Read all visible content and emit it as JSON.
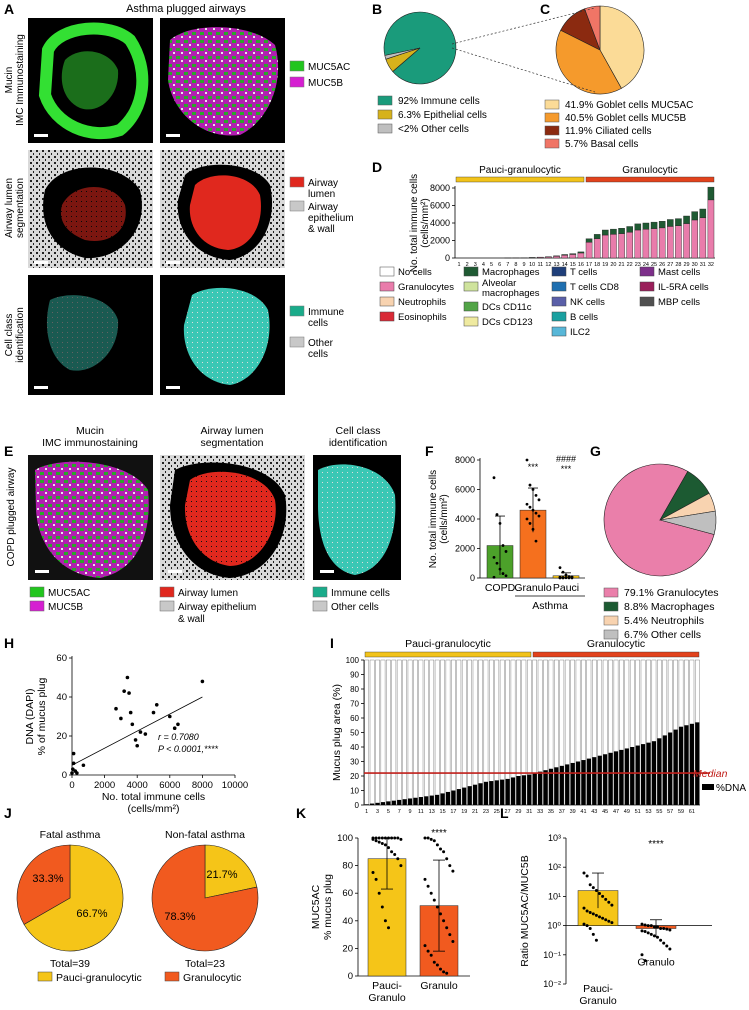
{
  "panel_labels": [
    "A",
    "B",
    "C",
    "D",
    "E",
    "F",
    "G",
    "H",
    "I",
    "J",
    "K",
    "L"
  ],
  "panelA": {
    "title": "Asthma plugged airways",
    "rows": [
      {
        "label": [
          "Mucin",
          "IMC Immunostaining"
        ],
        "legend": [
          {
            "text": "MUC5AC",
            "color": "#22c51e"
          },
          {
            "text": "MUC5B",
            "color": "#d51fd1"
          }
        ]
      },
      {
        "label": [
          "Airway lumen",
          "segmentation"
        ],
        "legend": [
          {
            "text": "Airway lumen",
            "color": "#e0281e"
          },
          {
            "text": "Airway epithelium & wall",
            "color": "#c8c8c8"
          }
        ]
      },
      {
        "label": [
          "Cell class",
          "identification"
        ],
        "legend": [
          {
            "text": "Immune cells",
            "color": "#1aab8a"
          },
          {
            "text": "Other cells",
            "color": "#c8c8c8"
          }
        ]
      }
    ]
  },
  "panelE": {
    "row_label": "COPD plugged airway",
    "titles": [
      "Mucin IMC immunostaining",
      "Airway lumen segmentation",
      "Cell class identification"
    ],
    "legend_cols": [
      [
        {
          "text": "MUC5AC",
          "color": "#22c51e"
        },
        {
          "text": "MUC5B",
          "color": "#d51fd1"
        }
      ],
      [
        {
          "text": "Airway lumen",
          "color": "#e0281e"
        },
        {
          "text": "Airway epithelium & wall",
          "color": "#c8c8c8"
        }
      ],
      [
        {
          "text": "Immune cells",
          "color": "#1aab8a"
        },
        {
          "text": "Other cells",
          "color": "#c8c8c8"
        }
      ]
    ]
  },
  "chart_data": [
    {
      "id": "B",
      "type": "pie",
      "slices": [
        {
          "label": "92% Immune cells",
          "value": 92,
          "color": "#1a9b7b"
        },
        {
          "label": "6.3% Epithelial cells",
          "value": 6.3,
          "color": "#d6b21b"
        },
        {
          "label": "<2% Other cells",
          "value": 1.7,
          "color": "#bfbfbf"
        }
      ]
    },
    {
      "id": "C",
      "type": "pie",
      "slices": [
        {
          "label": "41.9% Goblet cells MUC5AC",
          "value": 41.9,
          "color": "#fbdb97"
        },
        {
          "label": "40.5% Goblet cells MUC5B",
          "value": 40.5,
          "color": "#f59a2c"
        },
        {
          "label": "11.9% Ciliated cells",
          "value": 11.9,
          "color": "#8b2a10"
        },
        {
          "label": "5.7% Basal cells",
          "value": 5.7,
          "color": "#f07566"
        }
      ]
    },
    {
      "id": "D",
      "type": "bar",
      "ylabel": "No. total immune cells (cells/mm²)",
      "ylim": [
        0,
        8000
      ],
      "yticks": [
        0,
        2000,
        4000,
        6000,
        8000
      ],
      "groups": [
        {
          "label": "Pauci-granulocytic",
          "from": 1,
          "to": 16,
          "color": "#f2c31a"
        },
        {
          "label": "Granulocytic",
          "from": 17,
          "to": 32,
          "color": "#e2421c"
        }
      ],
      "categories": [
        "1",
        "2",
        "3",
        "4",
        "5",
        "6",
        "7",
        "8",
        "9",
        "10",
        "11",
        "12",
        "13",
        "14",
        "15",
        "16",
        "17",
        "18",
        "19",
        "20",
        "21",
        "22",
        "23",
        "24",
        "25",
        "26",
        "27",
        "28",
        "29",
        "30",
        "31",
        "32"
      ],
      "totals": [
        0,
        0,
        0,
        0,
        0,
        0,
        10,
        20,
        30,
        60,
        100,
        150,
        250,
        400,
        500,
        700,
        2200,
        2700,
        3200,
        3300,
        3400,
        3600,
        3900,
        4000,
        4100,
        4200,
        4400,
        4500,
        4800,
        5300,
        5600,
        8100
      ],
      "legend": [
        {
          "text": "No cells",
          "color": "#ffffff"
        },
        {
          "text": "Granulocytes",
          "color": "#e97cab"
        },
        {
          "text": "Neutrophils",
          "color": "#f8d3b0"
        },
        {
          "text": "Eosinophils",
          "color": "#d92a36"
        },
        {
          "text": "Macrophages",
          "color": "#1f5a33"
        },
        {
          "text": "Alveolar macrophages",
          "color": "#cfe39d"
        },
        {
          "text": "DCs CD11c",
          "color": "#52a447"
        },
        {
          "text": "DCs CD123",
          "color": "#efeaa0"
        },
        {
          "text": "T cells",
          "color": "#1f3f7a"
        },
        {
          "text": "T cells CD8",
          "color": "#1f6fb0"
        },
        {
          "text": "NK cells",
          "color": "#5a5fa8"
        },
        {
          "text": "B cells",
          "color": "#1aa0a0"
        },
        {
          "text": "ILC2",
          "color": "#58b7d8"
        },
        {
          "text": "Mast cells",
          "color": "#7d2f8a"
        },
        {
          "text": "IL-5RA cells",
          "color": "#9a1f5a"
        },
        {
          "text": "MBP cells",
          "color": "#505050"
        }
      ]
    },
    {
      "id": "F",
      "type": "bar",
      "ylabel": "No. total immune cells (cells/mm²)",
      "ylim": [
        0,
        8000
      ],
      "yticks": [
        0,
        2000,
        4000,
        6000,
        8000
      ],
      "categories": [
        "COPD",
        "Granulo",
        "Pauci"
      ],
      "group_label": "Asthma",
      "values": [
        2200,
        4600,
        150
      ],
      "errors": [
        2000,
        1500,
        200
      ],
      "colors": [
        "#4ca12a",
        "#f5701e",
        "#f2c31a"
      ],
      "annotations": [
        "",
        "***",
        "####\n***"
      ],
      "points": [
        [
          6800,
          4300,
          3700,
          2200,
          1800,
          1400,
          1000,
          600,
          300,
          150,
          50
        ],
        [
          8000,
          6300,
          6000,
          5600,
          5300,
          5000,
          4800,
          4600,
          4400,
          4200,
          4000,
          3700,
          3300,
          2500
        ],
        [
          700,
          400,
          200,
          100,
          80,
          60,
          40,
          20,
          10,
          5,
          0,
          0
        ]
      ]
    },
    {
      "id": "G",
      "type": "pie",
      "slices": [
        {
          "label": "79.1% Granulocytes",
          "value": 79.1,
          "color": "#ea7faa"
        },
        {
          "label": "8.8% Macrophages",
          "value": 8.8,
          "color": "#1c5a32"
        },
        {
          "label": "5.4% Neutrophils",
          "value": 5.4,
          "color": "#f8d3b0"
        },
        {
          "label": "6.7% Other cells",
          "value": 6.7,
          "color": "#bfbfbf"
        }
      ]
    },
    {
      "id": "H",
      "type": "scatter",
      "xlabel": "No. total immune cells (cells/mm²)",
      "ylabel": "DNA (DAPI) % of mucus plug",
      "xlim": [
        0,
        10000
      ],
      "ylim": [
        0,
        60
      ],
      "xticks": [
        0,
        2000,
        4000,
        6000,
        8000,
        10000
      ],
      "yticks": [
        0,
        20,
        40,
        60
      ],
      "points": [
        [
          0,
          1
        ],
        [
          50,
          3
        ],
        [
          100,
          11
        ],
        [
          100,
          6
        ],
        [
          200,
          2
        ],
        [
          300,
          1
        ],
        [
          700,
          5
        ],
        [
          2700,
          34
        ],
        [
          3000,
          29
        ],
        [
          3200,
          43
        ],
        [
          3400,
          50
        ],
        [
          3500,
          42
        ],
        [
          3600,
          32
        ],
        [
          3700,
          26
        ],
        [
          3900,
          18
        ],
        [
          4000,
          15
        ],
        [
          4200,
          22
        ],
        [
          4500,
          21
        ],
        [
          5000,
          32
        ],
        [
          5200,
          36
        ],
        [
          6000,
          30
        ],
        [
          6300,
          24
        ],
        [
          6500,
          26
        ],
        [
          8000,
          48
        ]
      ],
      "fit": {
        "x0": 0,
        "y0": 5,
        "x1": 8000,
        "y1": 40
      },
      "stat_r": "r = 0.7080",
      "stat_p": "P < 0.0001,****"
    },
    {
      "id": "I",
      "type": "bar",
      "ylabel": "Mucus plug area (%)",
      "ylim": [
        0,
        100
      ],
      "yticks": [
        0,
        10,
        20,
        30,
        40,
        50,
        60,
        70,
        80,
        90,
        100
      ],
      "n": 62,
      "groups": [
        {
          "label": "Pauci-granulocytic",
          "from": 1,
          "to": 31,
          "color": "#f2c31a"
        },
        {
          "label": "Granulocytic",
          "from": 32,
          "to": 62,
          "color": "#e2421c"
        }
      ],
      "xtick_labels": [
        "1",
        "3",
        "5",
        "7",
        "9",
        "11",
        "13",
        "15",
        "17",
        "19",
        "21",
        "23",
        "25",
        "27",
        "29",
        "31",
        "33",
        "35",
        "37",
        "39",
        "41",
        "43",
        "45",
        "47",
        "49",
        "51",
        "53",
        "55",
        "57",
        "59",
        "61"
      ],
      "dna_values": [
        0.5,
        1,
        1.5,
        2,
        2.5,
        3,
        3.5,
        4,
        4.5,
        5,
        5.5,
        6,
        6.5,
        7,
        8,
        9,
        10,
        11,
        12,
        13,
        14,
        15,
        16,
        16.5,
        17,
        17.5,
        18,
        19,
        20,
        20.5,
        21,
        22,
        23,
        24,
        25,
        26,
        27,
        28,
        29,
        30,
        31,
        32,
        33,
        34,
        35,
        36,
        37,
        38,
        39,
        40,
        41,
        42,
        43,
        44,
        46,
        48,
        50,
        52,
        54,
        55,
        56,
        57
      ],
      "median": 22,
      "median_label": "Median",
      "legend_label": "%DNA"
    },
    {
      "id": "J",
      "type": "pie",
      "pies": [
        {
          "title": "Fatal asthma",
          "total": "Total=39",
          "slices": [
            {
              "label": "66.7%",
              "value": 66.7,
              "color": "#f5c518"
            },
            {
              "label": "33.3%",
              "value": 33.3,
              "color": "#f15a1f"
            }
          ]
        },
        {
          "title": "Non-fatal asthma",
          "total": "Total=23",
          "slices": [
            {
              "label": "21.7%",
              "value": 21.7,
              "color": "#f5c518"
            },
            {
              "label": "78.3%",
              "value": 78.3,
              "color": "#f15a1f"
            }
          ]
        }
      ],
      "legend": [
        {
          "text": "Pauci-granulocytic",
          "color": "#f5c518"
        },
        {
          "text": "Granulocytic",
          "color": "#f15a1f"
        }
      ]
    },
    {
      "id": "K",
      "type": "bar",
      "ylabel": "MUC5AC % mucus plug",
      "ylim": [
        0,
        100
      ],
      "yticks": [
        0,
        20,
        40,
        60,
        80,
        100
      ],
      "categories": [
        "Pauci-Granulo",
        "Granulo"
      ],
      "values": [
        85,
        51
      ],
      "errors": [
        22,
        33
      ],
      "colors": [
        "#f5c518",
        "#f15a1f"
      ],
      "annotation": "****",
      "points": [
        [
          100,
          100,
          100,
          100,
          100,
          100,
          100,
          100,
          100,
          99,
          99,
          98,
          97,
          96,
          95,
          93,
          90,
          88,
          85,
          80,
          75,
          70,
          60,
          50,
          40,
          35
        ],
        [
          100,
          100,
          99,
          98,
          95,
          92,
          90,
          85,
          80,
          76,
          70,
          65,
          60,
          55,
          50,
          45,
          40,
          35,
          30,
          25,
          22,
          18,
          15,
          10,
          8,
          5,
          3,
          2
        ]
      ]
    },
    {
      "id": "L",
      "type": "bar",
      "ylabel": "Ratio MUC5AC/MUC5B",
      "yscale": "log",
      "yticks_exp": [
        -2,
        -1,
        0,
        1,
        2,
        3
      ],
      "categories": [
        "Pauci-Granulo",
        "Granulo"
      ],
      "values_log": [
        1.2,
        -0.1
      ],
      "errors_log": [
        0.6,
        0.3
      ],
      "colors": [
        "#f5c518",
        "#f15a1f"
      ],
      "annotation": "****",
      "points_log": [
        [
          1.8,
          1.7,
          1.4,
          1.3,
          1.2,
          1.1,
          1.0,
          0.9,
          0.8,
          0.7,
          0.6,
          0.5,
          0.45,
          0.4,
          0.35,
          0.3,
          0.25,
          0.2,
          0.15,
          0.1,
          0.05,
          0.0,
          -0.1,
          -0.3,
          -0.5
        ],
        [
          0.05,
          0.02,
          0,
          0,
          -0.05,
          -0.05,
          -0.1,
          -0.1,
          -0.12,
          -0.15,
          -0.18,
          -0.2,
          -0.25,
          -0.3,
          -0.35,
          -0.4,
          -0.5,
          -0.6,
          -0.7,
          -0.8,
          -1.0,
          -1.2
        ]
      ]
    }
  ],
  "text": {
    "D_ticks": [
      "0",
      "2000",
      "4000",
      "6000",
      "8000"
    ],
    "F_ticks": [
      "0",
      "2000",
      "4000",
      "6000",
      "8000"
    ],
    "H_xticks": [
      "0",
      "2000",
      "4000",
      "6000",
      "8000",
      "10000"
    ],
    "H_yticks": [
      "0",
      "20",
      "40",
      "60"
    ],
    "I_yticks": [
      "0",
      "10",
      "20",
      "30",
      "40",
      "50",
      "60",
      "70",
      "80",
      "90",
      "100"
    ],
    "K_yticks": [
      "0",
      "20",
      "40",
      "60",
      "80",
      "100"
    ],
    "L_yticks": [
      "10⁻²",
      "10⁻¹",
      "10⁰",
      "10¹",
      "10²",
      "10³"
    ]
  }
}
